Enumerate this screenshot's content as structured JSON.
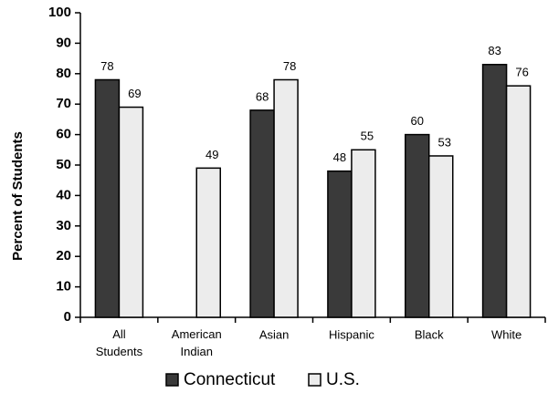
{
  "chart_data": {
    "type": "bar",
    "y_label": "Percent of Students",
    "categories": [
      "All Students",
      "American Indian",
      "Asian",
      "Hispanic",
      "Black",
      "White"
    ],
    "series": [
      {
        "name": "Connecticut",
        "color": "#3a3a3a",
        "values": [
          78,
          null,
          68,
          48,
          60,
          83
        ]
      },
      {
        "name": "U.S.",
        "color": "#ececec",
        "values": [
          69,
          49,
          78,
          55,
          53,
          76
        ]
      }
    ],
    "ylim": [
      0,
      100
    ],
    "yticks": [
      0,
      10,
      20,
      30,
      40,
      50,
      60,
      70,
      80,
      90,
      100
    ],
    "grid": false
  }
}
